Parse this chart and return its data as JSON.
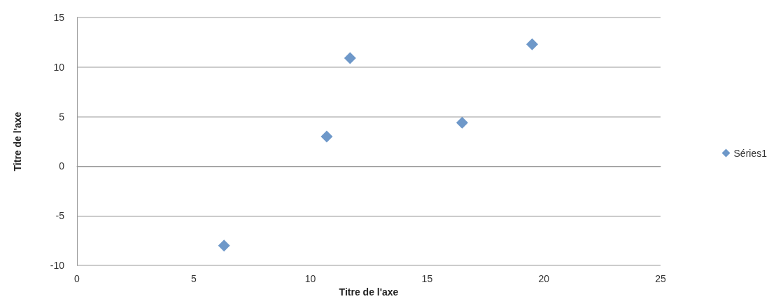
{
  "chart_data": {
    "type": "scatter",
    "xlabel": "Titre de l'axe",
    "ylabel": "Titre de l'axe",
    "series": [
      {
        "name": "Séries1",
        "color": "#4a7ebb",
        "x": [
          6.3,
          10.7,
          11.7,
          16.5,
          19.5
        ],
        "values": [
          -8,
          3,
          10.9,
          4.4,
          12.3
        ]
      }
    ],
    "xlim": [
      0,
      25
    ],
    "xticks": [
      0,
      5,
      10,
      15,
      20,
      25
    ],
    "ylim": [
      -10,
      15
    ],
    "yticks": [
      -10,
      -5,
      0,
      5,
      10,
      15
    ],
    "grid": "y",
    "legend": "right",
    "marker": "diamond"
  }
}
